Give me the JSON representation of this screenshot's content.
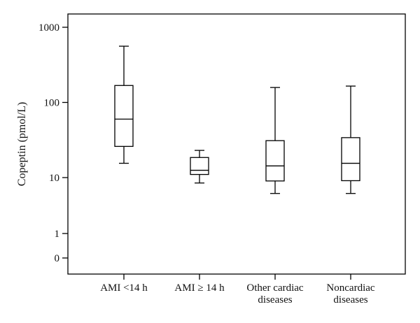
{
  "chart_data": {
    "type": "boxplot",
    "ylabel": "Copeptin (pmol/L)",
    "yscale": "log",
    "yticks": [
      {
        "value": 1000,
        "label": "1000"
      },
      {
        "value": 100,
        "label": "100"
      },
      {
        "value": 10,
        "label": "10"
      },
      {
        "value": 1,
        "label": "1"
      },
      {
        "value": 0,
        "label": "0"
      }
    ],
    "categories": [
      {
        "lines": [
          "AMI <14 h"
        ]
      },
      {
        "lines": [
          "AMI ≥ 14 h"
        ]
      },
      {
        "lines": [
          "Other cardiac",
          "diseases"
        ]
      },
      {
        "lines": [
          "Noncardiac",
          "diseases"
        ]
      }
    ],
    "boxes": [
      {
        "min": 15.5,
        "q1": 26,
        "median": 60,
        "q3": 168,
        "max": 560
      },
      {
        "min": 8,
        "q1": 11,
        "median": 12.5,
        "q3": 18.5,
        "max": 23
      },
      {
        "min": 5.2,
        "q1": 8.7,
        "median": 14.3,
        "q3": 31,
        "max": 158
      },
      {
        "min": 5.2,
        "q1": 8.8,
        "median": 15.5,
        "q3": 34,
        "max": 165
      }
    ],
    "grid": false,
    "legend": "none"
  }
}
